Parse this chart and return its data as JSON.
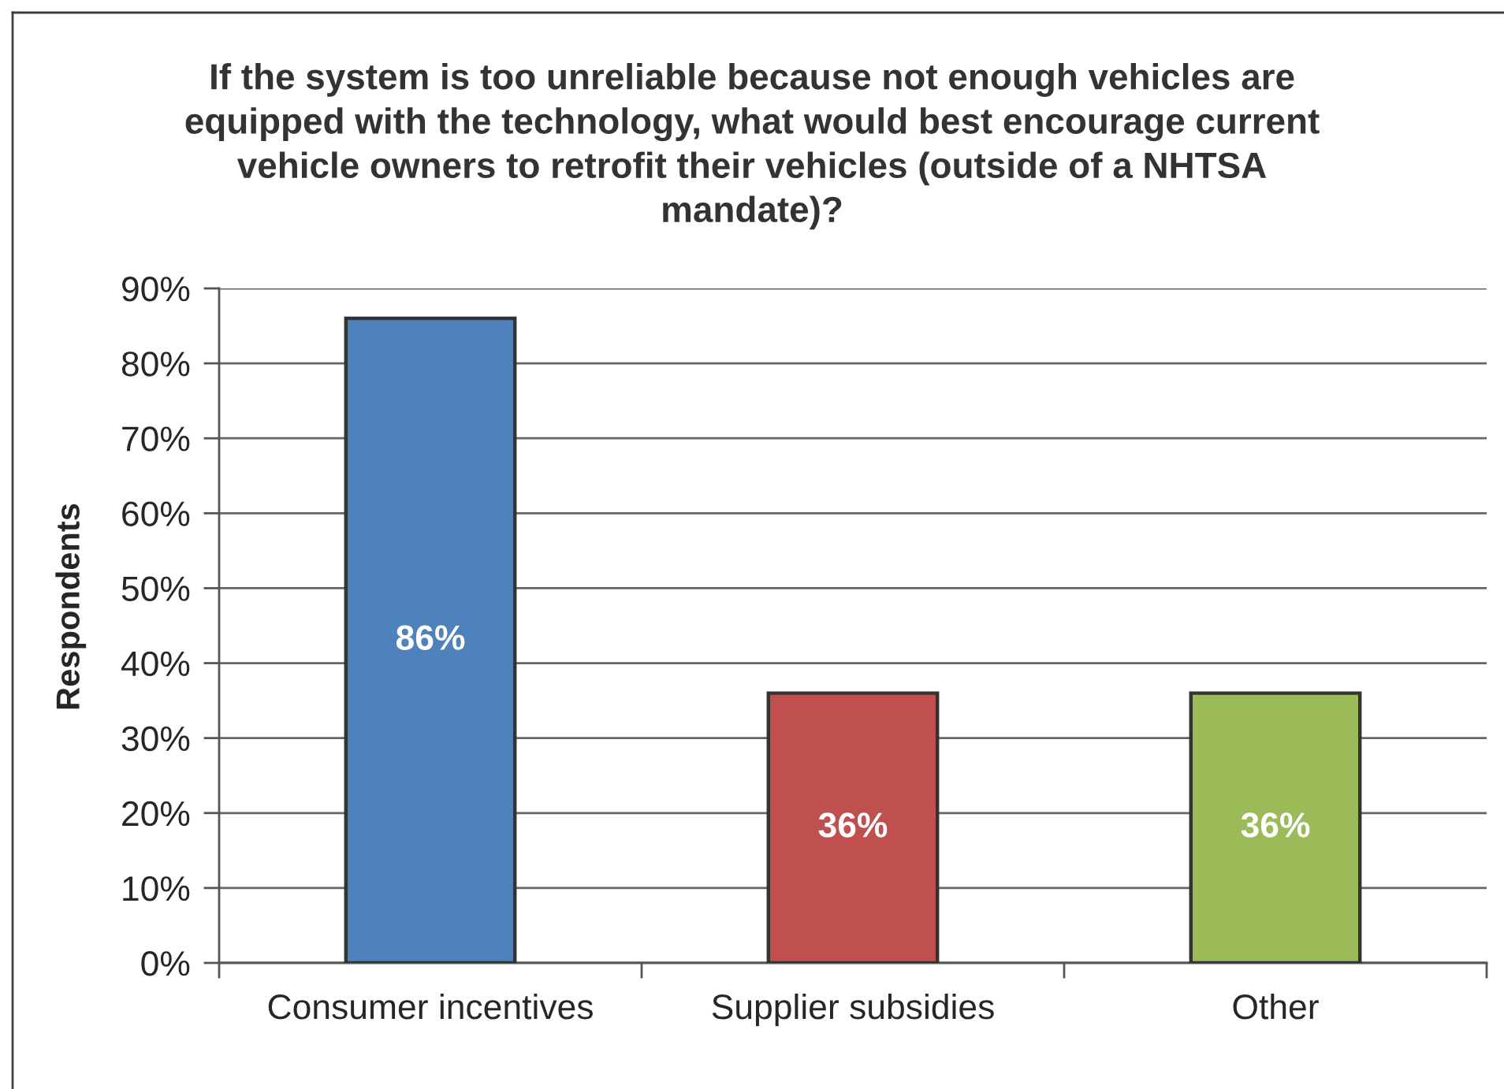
{
  "chart_data": {
    "type": "bar",
    "title": "If the system is too unreliable because not enough vehicles are\nequipped with the technology, what would best encourage current\nvehicle owners to retrofit their vehicles (outside of a NHTSA\nmandate)?",
    "ylabel": "Respondents",
    "categories": [
      "Consumer incentives",
      "Supplier subsidies",
      "Other"
    ],
    "values": [
      86,
      36,
      36
    ],
    "colors": [
      "#4f81bd",
      "#c0504d",
      "#9bbb59"
    ],
    "value_labels": [
      "86%",
      "36%",
      "36%"
    ],
    "ylim": [
      0,
      90
    ],
    "yticks": [
      {
        "value": 0,
        "label": "0%"
      },
      {
        "value": 10,
        "label": "10%"
      },
      {
        "value": 20,
        "label": "20%"
      },
      {
        "value": 30,
        "label": "30%"
      },
      {
        "value": 40,
        "label": "40%"
      },
      {
        "value": 50,
        "label": "50%"
      },
      {
        "value": 60,
        "label": "60%"
      },
      {
        "value": 70,
        "label": "70%"
      },
      {
        "value": 80,
        "label": "80%"
      },
      {
        "value": 90,
        "label": "90%"
      }
    ],
    "grid": "y"
  }
}
